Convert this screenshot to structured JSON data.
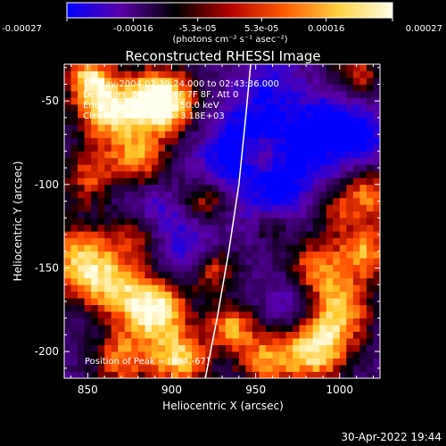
{
  "chart_data": {
    "type": "heatmap",
    "title": "Reconstructed RHESSI Image",
    "xlabel": "Heliocentric X (arcsec)",
    "ylabel": "Heliocentric Y (arcsec)",
    "xlim": [
      836,
      1024
    ],
    "ylim": [
      -216,
      -28
    ],
    "x_ticks": [
      "850",
      "900",
      "950",
      "1000"
    ],
    "y_ticks": [
      "-50",
      "-100",
      "-150",
      "-200"
    ],
    "colorbar": {
      "min": -0.00027,
      "max": 0.00027,
      "tick_labels": [
        "-0.00027",
        "-0.00016",
        "-5.3e-05",
        "5.3e-05",
        "0.00016",
        "0.00027"
      ],
      "unit_label": "(photons cm⁻² s⁻¹ asec⁻²)",
      "colors": [
        "#0000ff",
        "#5a00a8",
        "#000000",
        "#b40000",
        "#ff5a00",
        "#ffd040",
        "#ffffe6"
      ]
    },
    "annotations": [
      "17-May-2004 02:39:24.000 to 02:43:36.000",
      "Detectors: 3F 4F 5F 6F 7F 8F, Att 0",
      "Energy Range: 25.0 - 50.0 keV",
      "Clean    Total Counts: 3.18E+03"
    ],
    "peak_label": "Position of Peak = [894,-67]",
    "peak": [
      894,
      -67
    ],
    "limb_curve": [
      [
        947,
        -28
      ],
      [
        944,
        -60
      ],
      [
        940,
        -100
      ],
      [
        934,
        -140
      ],
      [
        927,
        -180
      ],
      [
        920,
        -216
      ]
    ],
    "hotspots": [
      {
        "x": 894,
        "y": -50,
        "s": 1.0,
        "r": 14
      },
      {
        "x": 862,
        "y": -55,
        "s": 0.75,
        "r": 14
      },
      {
        "x": 850,
        "y": -35,
        "s": 0.6,
        "r": 10
      },
      {
        "x": 880,
        "y": -85,
        "s": 0.55,
        "r": 12
      },
      {
        "x": 852,
        "y": -95,
        "s": 0.45,
        "r": 12
      },
      {
        "x": 845,
        "y": -145,
        "s": 0.65,
        "r": 16
      },
      {
        "x": 865,
        "y": -160,
        "s": 0.5,
        "r": 14
      },
      {
        "x": 890,
        "y": -175,
        "s": 0.85,
        "r": 14
      },
      {
        "x": 905,
        "y": -205,
        "s": 0.7,
        "r": 12
      },
      {
        "x": 870,
        "y": -205,
        "s": 0.55,
        "r": 12
      },
      {
        "x": 925,
        "y": -150,
        "s": 0.5,
        "r": 10
      },
      {
        "x": 920,
        "y": -110,
        "s": 0.45,
        "r": 10
      },
      {
        "x": 935,
        "y": -185,
        "s": 0.6,
        "r": 10
      },
      {
        "x": 955,
        "y": -80,
        "s": 0.4,
        "r": 10
      },
      {
        "x": 955,
        "y": -205,
        "s": 0.55,
        "r": 12
      },
      {
        "x": 985,
        "y": -200,
        "s": 0.75,
        "r": 14
      },
      {
        "x": 1000,
        "y": -175,
        "s": 0.65,
        "r": 14
      },
      {
        "x": 985,
        "y": -150,
        "s": 0.55,
        "r": 12
      },
      {
        "x": 1015,
        "y": -140,
        "s": 0.6,
        "r": 12
      },
      {
        "x": 1018,
        "y": -105,
        "s": 0.55,
        "r": 12
      },
      {
        "x": 995,
        "y": -115,
        "s": 0.35,
        "r": 10
      },
      {
        "x": 1010,
        "y": -35,
        "s": 0.45,
        "r": 12
      },
      {
        "x": 960,
        "y": -125,
        "s": 0.35,
        "r": 8
      },
      {
        "x": 880,
        "y": -130,
        "s": 0.35,
        "r": 10
      }
    ],
    "coldspots": [
      {
        "x": 945,
        "y": -70,
        "s": 0.9,
        "r": 16
      },
      {
        "x": 975,
        "y": -80,
        "s": 0.95,
        "r": 18
      },
      {
        "x": 1000,
        "y": -60,
        "s": 0.8,
        "r": 14
      },
      {
        "x": 960,
        "y": -110,
        "s": 0.7,
        "r": 14
      },
      {
        "x": 910,
        "y": -135,
        "s": 0.7,
        "r": 14
      },
      {
        "x": 930,
        "y": -90,
        "s": 0.6,
        "r": 12
      },
      {
        "x": 975,
        "y": -170,
        "s": 0.6,
        "r": 12
      },
      {
        "x": 890,
        "y": -115,
        "s": 0.5,
        "r": 10
      },
      {
        "x": 1015,
        "y": -75,
        "s": 0.6,
        "r": 12
      },
      {
        "x": 960,
        "y": -40,
        "s": 0.55,
        "r": 12
      },
      {
        "x": 870,
        "y": -100,
        "s": 0.35,
        "r": 8
      }
    ]
  },
  "footer": {
    "timestamp": "30-Apr-2022 19:44"
  }
}
